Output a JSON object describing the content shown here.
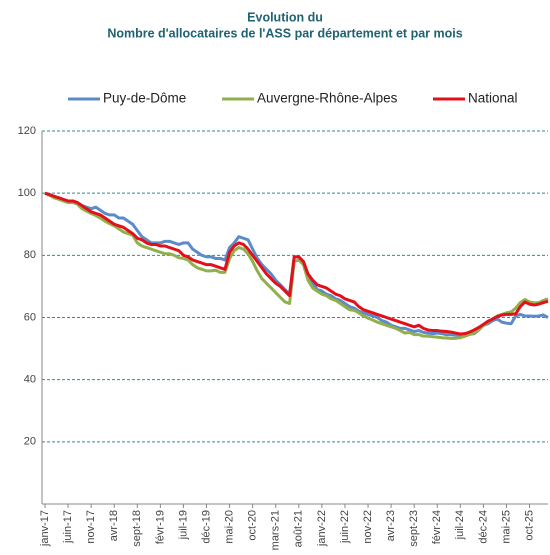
{
  "chart_data": {
    "type": "line",
    "title_lines": [
      "Evolution du",
      "Nombre d'allocataires de l'ASS par département et par mois"
    ],
    "categories": [
      "janv-17",
      null,
      null,
      null,
      null,
      "juin-17",
      null,
      null,
      null,
      null,
      "nov-17",
      null,
      null,
      null,
      null,
      "avr-18",
      null,
      null,
      null,
      null,
      "sept-18",
      null,
      null,
      null,
      null,
      "févr-19",
      null,
      null,
      null,
      null,
      "juil-19",
      null,
      null,
      null,
      null,
      "déc-19",
      null,
      null,
      null,
      null,
      "mai-20",
      null,
      null,
      null,
      null,
      "oct-20",
      null,
      null,
      null,
      null,
      "mars-21",
      null,
      null,
      null,
      null,
      "août-21",
      null,
      null,
      null,
      null,
      "janv-22",
      null,
      null,
      null,
      null,
      "juin-22",
      null,
      null,
      null,
      null,
      "nov-22",
      null,
      null,
      null,
      null,
      "avr-23",
      null,
      null,
      null,
      null,
      "sept-23",
      null,
      null,
      null,
      null,
      "févr-24",
      null,
      null,
      null,
      null,
      "juil-24",
      null,
      null,
      null,
      null,
      "déc-24",
      null,
      null,
      null,
      null,
      "mai-25",
      null,
      null,
      null,
      null,
      "oct-25",
      null,
      null,
      null,
      null
    ],
    "series": [
      {
        "name": "Puy-de-Dôme",
        "color": "#5b8bc9",
        "values": [
          100,
          99.5,
          98.8,
          98.2,
          97.5,
          97,
          97.5,
          97,
          96,
          95.5,
          95,
          95.5,
          94.5,
          93.5,
          93,
          93,
          92,
          92,
          91,
          90,
          88,
          86,
          85,
          84,
          84,
          84,
          84.5,
          84.5,
          84,
          83.5,
          84,
          84,
          82,
          81,
          80,
          79.5,
          79.5,
          79,
          79,
          78.5,
          82.5,
          84,
          86,
          85.5,
          85,
          82,
          79,
          77,
          75.5,
          74,
          72,
          70.5,
          69,
          67.5,
          79.5,
          79.5,
          78,
          73.5,
          71,
          69,
          68.5,
          67.5,
          67,
          66,
          65.5,
          64.5,
          63.5,
          63,
          62,
          61.5,
          61,
          60.5,
          60,
          59,
          58.5,
          57.5,
          57,
          56.5,
          56.5,
          56,
          55.5,
          55.8,
          55.2,
          55,
          54.8,
          55,
          54.8,
          54.5,
          54.5,
          54.3,
          54.3,
          54.5,
          54.6,
          54.8,
          56,
          57.5,
          58,
          59,
          59.5,
          58.5,
          58.2,
          58,
          60.5,
          61,
          60.5,
          60.5,
          60.4,
          60.5,
          60.8,
          60
        ]
      },
      {
        "name": "Auvergne-Rhône-Alpes",
        "color": "#8fb04a",
        "values": [
          100,
          99.3,
          98.5,
          98,
          97.5,
          97,
          97,
          96.5,
          95,
          94.2,
          93.5,
          92.8,
          92,
          91,
          90.2,
          89.5,
          88.5,
          87.5,
          87,
          86.5,
          84,
          83,
          82.5,
          82,
          81.5,
          81,
          80.5,
          80.5,
          80,
          79.2,
          79,
          78.5,
          77,
          76,
          75.5,
          75,
          75,
          75.2,
          74.5,
          74.5,
          79,
          81.5,
          82.5,
          82,
          80.5,
          78,
          75,
          72.5,
          71,
          69.5,
          68,
          66.5,
          65,
          64.5,
          78,
          78.5,
          77,
          72,
          69.5,
          68.5,
          67.5,
          67,
          66,
          65.5,
          64.5,
          63.5,
          62.5,
          62.3,
          61.5,
          60.5,
          59.8,
          59.2,
          58.5,
          58,
          57.5,
          57,
          56.5,
          55.8,
          55,
          55.2,
          54.5,
          54.5,
          54,
          54,
          53.8,
          53.7,
          53.5,
          53.4,
          53.3,
          53.3,
          53.5,
          54,
          54.5,
          55,
          56,
          57.5,
          58.5,
          59.5,
          60.5,
          61,
          61.5,
          61.8,
          63,
          64.8,
          65.8,
          65,
          64.7,
          64.8,
          65.5,
          66
        ]
      },
      {
        "name": "National",
        "color": "#e3101b",
        "values": [
          100,
          99.5,
          99,
          98.5,
          98,
          97.5,
          97.5,
          97,
          96,
          95,
          94,
          93.5,
          93,
          92,
          91,
          90,
          89.5,
          89,
          88,
          87,
          85.5,
          85,
          84,
          83.5,
          83.5,
          83,
          83,
          82.5,
          82,
          81.5,
          80,
          79.5,
          78.5,
          78,
          77.5,
          77,
          77,
          76.5,
          76,
          75.5,
          81,
          83,
          84,
          83.5,
          82,
          80,
          78,
          76,
          74,
          72.5,
          71,
          70,
          68.5,
          67,
          79.5,
          79.5,
          78,
          74,
          72,
          70.5,
          70,
          69.5,
          68.5,
          67.5,
          67,
          66,
          65.5,
          65,
          63.5,
          62.5,
          62,
          61.5,
          61,
          60.5,
          60,
          59.5,
          59,
          58.5,
          58,
          57.5,
          57,
          57.5,
          56.5,
          56,
          55.8,
          55.8,
          55.6,
          55.5,
          55.3,
          55,
          54.7,
          54.8,
          55.3,
          56,
          56.8,
          57.8,
          58.8,
          59.5,
          60.3,
          60.8,
          61,
          61,
          61.2,
          63.5,
          65,
          64.3,
          64,
          64.3,
          64.8,
          65.2
        ]
      }
    ],
    "ylim": [
      0,
      120
    ],
    "yticks": [
      20,
      40,
      60,
      80,
      100,
      120
    ],
    "grid": true,
    "legend": "top"
  }
}
